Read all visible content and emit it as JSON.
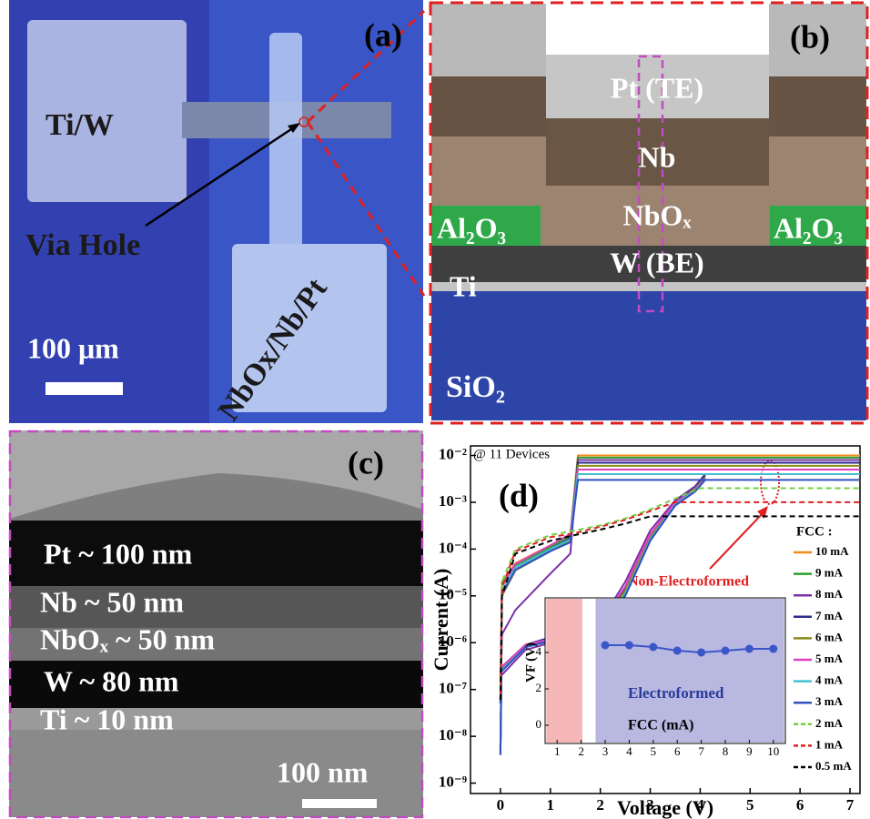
{
  "panels": {
    "a": {
      "label": "(a)",
      "texts": [
        "Ti/W",
        "Via Hole",
        "NbOx/Nb/Pt",
        "100 μm"
      ]
    },
    "b": {
      "label": "(b)",
      "texts": [
        "Pt (TE)",
        "Nb",
        "NbOₓ",
        "Al₂O₃",
        "Al₂O₃",
        "W (BE)",
        "Ti",
        "SiO₂"
      ]
    },
    "c": {
      "label": "(c)",
      "texts": [
        "Pt ~ 100 nm",
        "Nb ~ 50 nm",
        "NbOₓ ~ 50 nm",
        "W ~ 80 nm",
        "Ti ~ 10 nm",
        "100 nm"
      ]
    }
  },
  "chart_data": [
    {
      "type": "line",
      "panel_label": "(d)",
      "note": "@ 11 Devices",
      "annotation": "Non-Electroformed",
      "xlabel": "Voltage (V)",
      "ylabel": "Current (A)",
      "log_y": true,
      "xlim": [
        -0.6,
        7.2
      ],
      "ylim": [
        6e-10,
        0.016
      ],
      "xticks": [
        0,
        1,
        2,
        3,
        4,
        5,
        6,
        7
      ],
      "yticks": [
        {
          "value": 1e-09,
          "label": "10⁻⁹"
        },
        {
          "value": 1e-08,
          "label": "10⁻⁸"
        },
        {
          "value": 1e-07,
          "label": "10⁻⁷"
        },
        {
          "value": 1e-06,
          "label": "10⁻⁶"
        },
        {
          "value": 1e-05,
          "label": "10⁻⁵"
        },
        {
          "value": 0.0001,
          "label": "10⁻⁴"
        },
        {
          "value": 0.001,
          "label": "10⁻³"
        },
        {
          "value": 0.01,
          "label": "10⁻²"
        }
      ],
      "legend_title": "FCC :",
      "legend": "right",
      "series": [
        {
          "name": "10 mA",
          "color": "#f28a1c",
          "dash": false,
          "x": [
            0,
            0.02,
            0.5,
            1,
            1.5,
            2,
            2.5,
            3,
            3.5,
            3.9,
            4.1,
            null,
            0,
            0.03,
            0.3,
            1,
            1.4,
            1.55,
            7.2
          ],
          "values": [
            5e-09,
            3e-07,
            9e-07,
            1.2e-06,
            1.4e-06,
            2.5e-06,
            1.5e-05,
            0.0002,
            0.001,
            0.002,
            0.004,
            null,
            6e-08,
            2e-05,
            5e-05,
            0.00012,
            0.0002,
            0.01,
            0.01
          ]
        },
        {
          "name": "9 mA",
          "color": "#2ca02c",
          "dash": false,
          "x": [
            0,
            0.02,
            0.5,
            1,
            1.5,
            2,
            2.5,
            3,
            3.5,
            3.9,
            4.1,
            null,
            0,
            0.03,
            0.3,
            1,
            1.4,
            1.55,
            7.2
          ],
          "values": [
            6e-09,
            2.5e-07,
            8e-07,
            1.1e-06,
            1.4e-06,
            2.2e-06,
            1.2e-05,
            0.00018,
            0.0009,
            0.002,
            0.0035,
            null,
            7e-08,
            1.8e-05,
            4.5e-05,
            0.00011,
            0.00019,
            0.009,
            0.009
          ]
        },
        {
          "name": "8 mA",
          "color": "#7b2fa8",
          "dash": false,
          "x": [
            0,
            0.02,
            0.5,
            1,
            1.5,
            2,
            2.5,
            3,
            3.5,
            3.9,
            4.1,
            null,
            0,
            0.03,
            0.3,
            1,
            1.4,
            1.55,
            7.2
          ],
          "values": [
            4e-09,
            2e-07,
            7e-07,
            1e-06,
            1.3e-06,
            2.8e-06,
            2e-05,
            0.00025,
            0.0011,
            0.0022,
            0.004,
            null,
            5e-08,
            1.5e-06,
            5e-06,
            3e-05,
            8e-05,
            0.008,
            0.008
          ]
        },
        {
          "name": "7 mA",
          "color": "#2b2b8c",
          "dash": false,
          "x": [
            0,
            0.02,
            0.5,
            1,
            1.5,
            2,
            2.5,
            3,
            3.5,
            3.9,
            4.1,
            null,
            0,
            0.03,
            0.3,
            1,
            1.4,
            1.55,
            7.2
          ],
          "values": [
            5e-09,
            3e-07,
            9e-07,
            1.3e-06,
            1.5e-06,
            2.4e-06,
            1.4e-05,
            0.0002,
            0.001,
            0.0021,
            0.0038,
            null,
            6e-08,
            1.2e-05,
            4e-05,
            0.0001,
            0.00017,
            0.007,
            0.007
          ]
        },
        {
          "name": "6 mA",
          "color": "#8b8b1a",
          "dash": false,
          "x": [
            0,
            0.02,
            0.5,
            1,
            1.5,
            2,
            2.5,
            3,
            3.5,
            3.9,
            4.1,
            null,
            0,
            0.03,
            0.3,
            1,
            1.4,
            1.55,
            7.2
          ],
          "values": [
            5e-09,
            2.8e-07,
            8.5e-07,
            1.2e-06,
            1.4e-06,
            2.3e-06,
            1.3e-05,
            0.00019,
            0.00095,
            0.002,
            0.0034,
            null,
            5e-08,
            1e-05,
            3.5e-05,
            9e-05,
            0.00015,
            0.006,
            0.006
          ]
        },
        {
          "name": "5 mA",
          "color": "#e040c0",
          "dash": false,
          "x": [
            0,
            0.02,
            0.5,
            1,
            1.5,
            2,
            2.5,
            3,
            3.5,
            3.9,
            4.1,
            null,
            0,
            0.03,
            0.3,
            1,
            1.4,
            1.55,
            7.2
          ],
          "values": [
            6e-09,
            3e-07,
            9e-07,
            1.2e-06,
            1.5e-06,
            2.6e-06,
            1.6e-05,
            0.00021,
            0.001,
            0.0019,
            0.0032,
            null,
            6e-08,
            1.6e-05,
            4.8e-05,
            0.00012,
            0.00021,
            0.005,
            0.005
          ]
        },
        {
          "name": "4 mA",
          "color": "#40c0d0",
          "dash": false,
          "x": [
            0,
            0.02,
            0.5,
            1,
            1.5,
            2,
            2.5,
            3,
            3.5,
            3.9,
            4.1,
            null,
            0,
            0.03,
            0.3,
            1,
            1.4,
            1.55,
            7.2
          ],
          "values": [
            5e-09,
            2.6e-07,
            8e-07,
            1.1e-06,
            1.4e-06,
            2.2e-06,
            1.1e-05,
            0.00016,
            0.0009,
            0.0018,
            0.003,
            null,
            5e-08,
            1.3e-05,
            4e-05,
            0.0001,
            0.00016,
            0.004,
            0.004
          ]
        },
        {
          "name": "3 mA",
          "color": "#3050c0",
          "dash": false,
          "x": [
            0,
            0.02,
            0.5,
            1,
            1.5,
            2,
            2.5,
            3,
            3.5,
            3.9,
            4.1,
            null,
            0,
            0.03,
            0.3,
            1,
            1.4,
            1.55,
            7.2
          ],
          "values": [
            4e-09,
            2.4e-07,
            8e-07,
            1.1e-06,
            1.3e-06,
            2.1e-06,
            1e-05,
            0.00015,
            0.00085,
            0.0017,
            0.003,
            null,
            5e-08,
            1.1e-05,
            3.6e-05,
            9e-05,
            0.00014,
            0.003,
            0.003
          ]
        },
        {
          "name": "2 mA",
          "color": "#70d040",
          "dash": true,
          "x": [
            0,
            0.03,
            0.3,
            1,
            1.5,
            2,
            2.5,
            3,
            3.5,
            4,
            7.2
          ],
          "values": [
            1e-07,
            2e-05,
            0.0001,
            0.0002,
            0.00025,
            0.00032,
            0.00045,
            0.0007,
            0.0012,
            0.002,
            0.002
          ]
        },
        {
          "name": "1 mA",
          "color": "#e02020",
          "dash": true,
          "x": [
            0,
            0.03,
            0.3,
            1,
            1.5,
            2,
            2.5,
            3,
            3.5,
            4,
            7.2
          ],
          "values": [
            8e-08,
            1.5e-05,
            9e-05,
            0.00018,
            0.00022,
            0.0003,
            0.00042,
            0.00065,
            0.001,
            0.001,
            0.001
          ]
        },
        {
          "name": "0.5 mA",
          "color": "#000000",
          "dash": true,
          "x": [
            0,
            0.03,
            0.3,
            1,
            1.5,
            2,
            2.5,
            3,
            3.5,
            4,
            7.2
          ],
          "values": [
            6e-08,
            1e-05,
            8e-05,
            0.00015,
            0.0002,
            0.00026,
            0.00035,
            0.0005,
            0.0005,
            0.0005,
            0.0005
          ]
        }
      ]
    },
    {
      "type": "inset",
      "label": "Electroformed",
      "xlabel": "FCC (mA)",
      "ylabel": "VF (V)",
      "xlim": [
        0.5,
        10.5
      ],
      "ylim": [
        -1,
        7
      ],
      "xticks": [
        1,
        2,
        3,
        4,
        5,
        6,
        7,
        8,
        9,
        10
      ],
      "yticks": [
        0,
        2,
        4
      ],
      "shaded": [
        {
          "range": [
            0.55,
            2.05
          ],
          "color": "#f4b6b6"
        },
        {
          "range": [
            2.6,
            10.45
          ],
          "color": "#b8b8e0"
        }
      ],
      "color": "#3a56c8",
      "x": [
        3,
        4,
        5,
        6,
        7,
        8,
        9,
        10
      ],
      "values": [
        4.4,
        4.4,
        4.3,
        4.1,
        4.0,
        4.1,
        4.2,
        4.2
      ]
    }
  ]
}
